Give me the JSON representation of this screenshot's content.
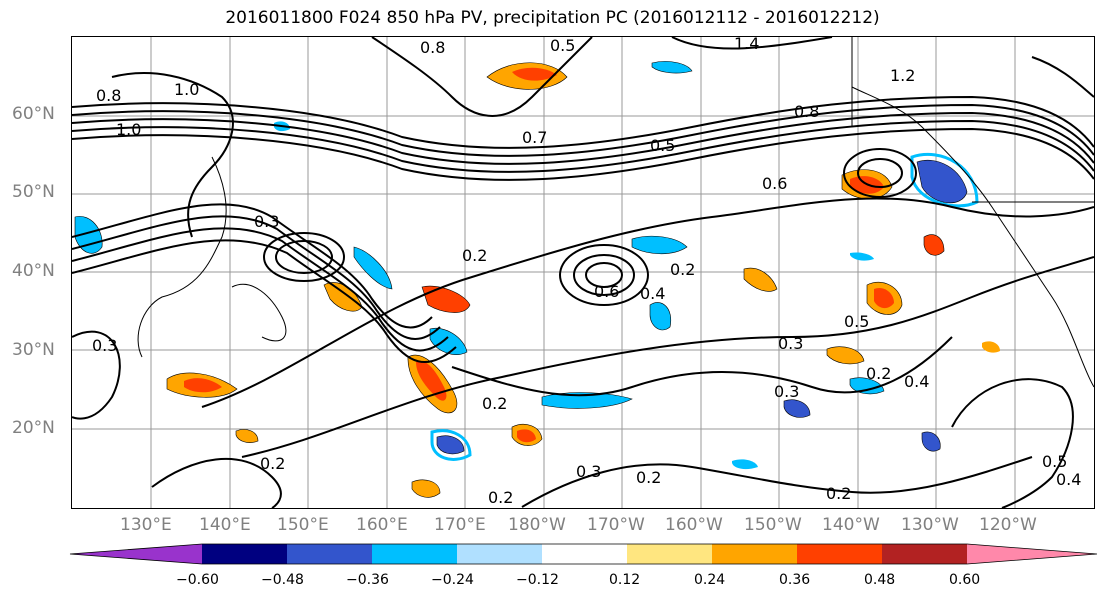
{
  "title": "2016011800 F024 850 hPa PV, precipitation PC (2016012112 - 2016012212)",
  "lat_labels": [
    "60°N",
    "50°N",
    "40°N",
    "30°N",
    "20°N"
  ],
  "lon_labels": [
    "130°E",
    "140°E",
    "150°E",
    "160°E",
    "170°E",
    "180°W",
    "170°W",
    "160°W",
    "150°W",
    "140°W",
    "130°W",
    "120°W"
  ],
  "contour_labels": [
    "0.8",
    "1.0",
    "1.0",
    "0.8",
    "0.5",
    "1.4",
    "1.2",
    "0.8",
    "0.7",
    "0.5",
    "0.6",
    "0.3",
    "0.2",
    "0.6",
    "0.4",
    "0.2",
    "0.3",
    "0.3",
    "0.2",
    "0.4",
    "0.5",
    "0.2",
    "0.2",
    "0.3",
    "0.2",
    "0.2",
    "0.2",
    "0.3",
    "0.5",
    "0.4"
  ],
  "colorbar": {
    "colors": [
      "#9933cc",
      "#000080",
      "#3355cc",
      "#00bfff",
      "#b0e0ff",
      "#ffffff",
      "#ffe680",
      "#ffa500",
      "#ff4000",
      "#b22222",
      "#ff88aa"
    ],
    "ticks": [
      "−0.60",
      "−0.48",
      "−0.36",
      "−0.24",
      "−0.12",
      "0.12",
      "0.24",
      "0.36",
      "0.48",
      "0.60"
    ]
  }
}
